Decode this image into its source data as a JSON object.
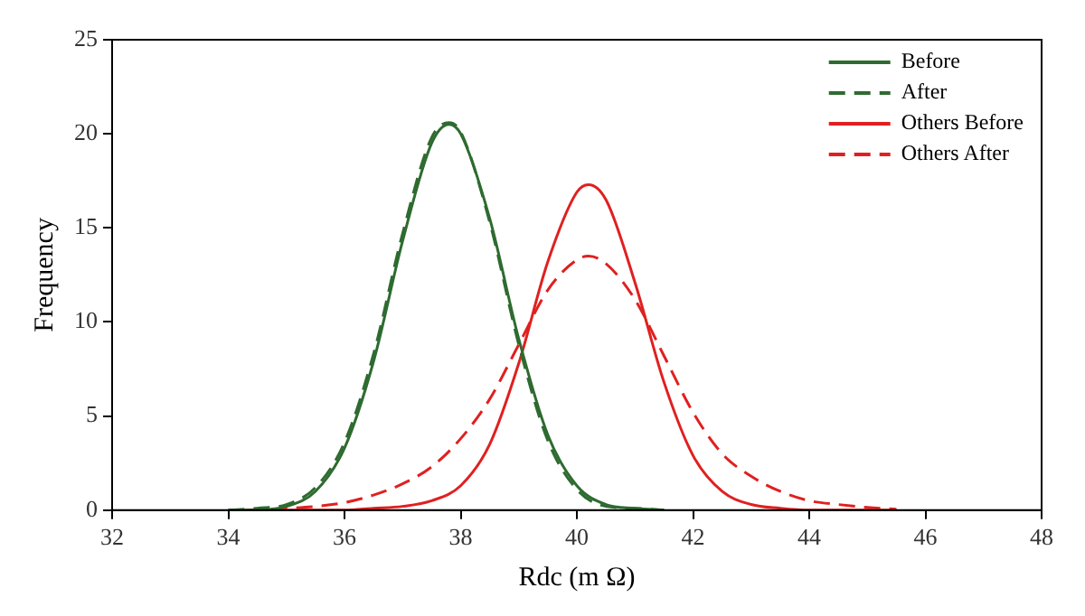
{
  "chart_data": {
    "type": "line",
    "xlabel": "Rdc (m Ω)",
    "ylabel": "Frequency",
    "xlim": [
      32,
      48
    ],
    "xticks": [
      32,
      34,
      36,
      38,
      40,
      42,
      44,
      46,
      48
    ],
    "ylim": [
      0,
      25
    ],
    "yticks": [
      0,
      5,
      10,
      15,
      20,
      25
    ],
    "grid": false,
    "legend": "top right",
    "marker": "none",
    "series": [
      {
        "name": "Before",
        "color": "#2e6b30",
        "line_style": "solid",
        "x": [
          34,
          34.5,
          35,
          35.5,
          36,
          36.5,
          37,
          37.5,
          37.8,
          38,
          38.5,
          39,
          39.5,
          40,
          40.5,
          41,
          41.5
        ],
        "values": [
          0,
          0,
          0.2,
          1,
          3.3,
          7.9,
          14.3,
          19.5,
          20.5,
          20,
          15.5,
          9.1,
          4,
          1.3,
          0.3,
          0.1,
          0
        ]
      },
      {
        "name": "After",
        "color": "#2e6b30",
        "line_style": "dashed",
        "x": [
          34,
          34.5,
          35,
          35.5,
          36,
          36.5,
          37,
          37.5,
          37.8,
          38,
          38.5,
          39,
          39.5,
          40,
          40.5,
          41,
          41.5
        ],
        "values": [
          0,
          0.1,
          0.3,
          1.2,
          3.6,
          8.3,
          14.7,
          19.8,
          20.6,
          20.1,
          15.3,
          8.8,
          3.7,
          1.1,
          0.2,
          0.1,
          0
        ]
      },
      {
        "name": "Others Before",
        "color": "#e02020",
        "line_style": "solid",
        "x": [
          35,
          36,
          36.5,
          37,
          37.5,
          38,
          38.5,
          39,
          39.5,
          40,
          40.2,
          40.5,
          41,
          41.5,
          42,
          42.5,
          43,
          43.5,
          44,
          45,
          45.5
        ],
        "values": [
          0,
          0,
          0.1,
          0.2,
          0.5,
          1.3,
          3.5,
          7.8,
          13.2,
          16.9,
          17.3,
          16.5,
          12.1,
          6.8,
          2.9,
          1,
          0.3,
          0.1,
          0,
          0,
          0
        ]
      },
      {
        "name": "Others After",
        "color": "#e02020",
        "line_style": "dashed",
        "x": [
          34.3,
          35,
          35.5,
          36,
          36.5,
          37,
          37.5,
          38,
          38.5,
          39,
          39.5,
          40,
          40.2,
          40.5,
          41,
          41.5,
          42,
          42.5,
          43,
          43.5,
          44,
          44.5,
          45,
          45.5
        ],
        "values": [
          0,
          0.1,
          0.2,
          0.4,
          0.8,
          1.4,
          2.3,
          3.8,
          5.9,
          8.8,
          11.7,
          13.3,
          13.5,
          13.1,
          11.2,
          8.2,
          5.2,
          3,
          1.8,
          1,
          0.5,
          0.3,
          0.15,
          0.05
        ]
      }
    ]
  }
}
